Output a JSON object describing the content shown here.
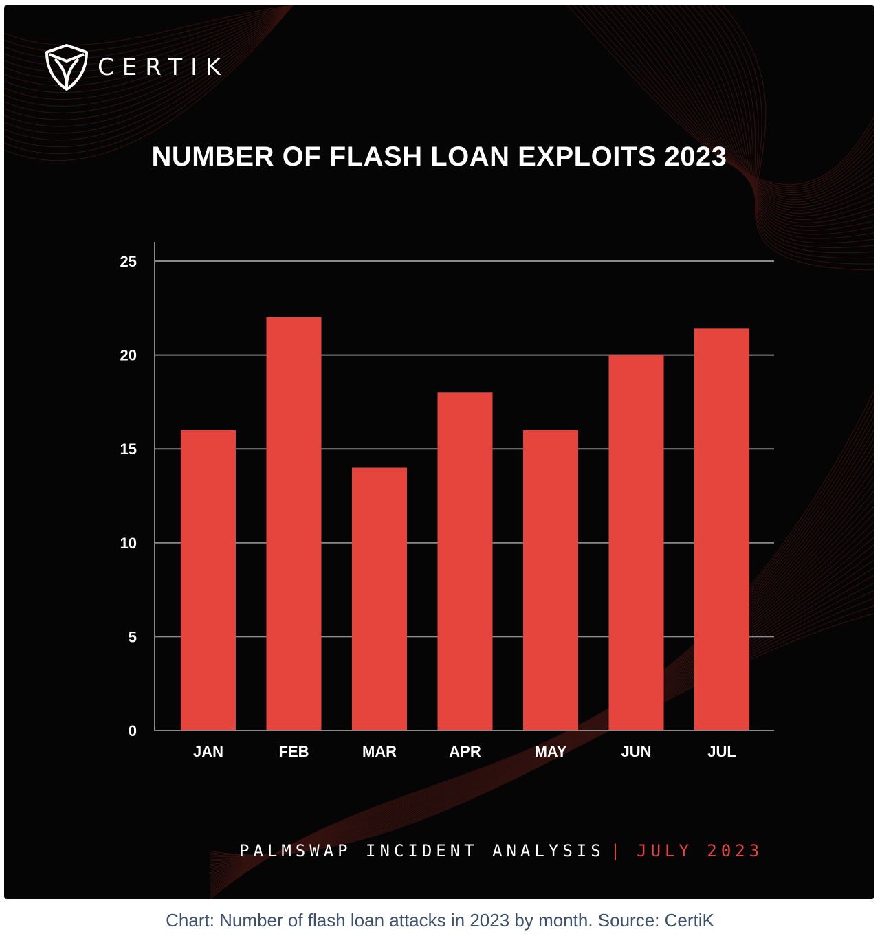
{
  "brand": {
    "name": "CERTIK",
    "logo_icon": "certik-shield-icon"
  },
  "footer": {
    "main": "PALMSWAP INCIDENT ANALYSIS",
    "separator": "|",
    "date": "JULY 2023"
  },
  "caption": "Chart: Number of flash loan attacks in 2023 by month. Source: CertiK",
  "colors": {
    "background": "#050505",
    "bar": "#e5453d",
    "accent": "#e5453d",
    "grid": "#8a8a8a",
    "caption": "#3d4f6b"
  },
  "chart_data": {
    "type": "bar",
    "title": "NUMBER OF FLASH LOAN EXPLOITS 2023",
    "categories": [
      "JAN",
      "FEB",
      "MAR",
      "APR",
      "MAY",
      "JUN",
      "JUL"
    ],
    "values": [
      16,
      22,
      14,
      18,
      16,
      20,
      21.4
    ],
    "ylim": [
      0,
      25
    ],
    "yticks": [
      0,
      5,
      10,
      15,
      20,
      25
    ],
    "xlabel": "",
    "ylabel": "",
    "grid": true,
    "legend": "none"
  }
}
